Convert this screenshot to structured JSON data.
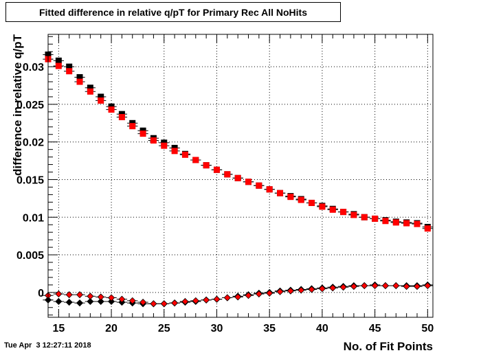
{
  "chart_data": {
    "type": "scatter",
    "title": "Fitted difference in relative q/pT for Primary Rec All NoHits",
    "xlabel": "No. of Fit Points",
    "ylabel": "difference in relative q/pT",
    "xlim": [
      14,
      50.5
    ],
    "ylim": [
      -0.0033,
      0.0343
    ],
    "x_ticks": [
      15,
      20,
      25,
      30,
      35,
      40,
      45,
      50
    ],
    "y_ticks": [
      0,
      0.005,
      0.01,
      0.015,
      0.02,
      0.025,
      0.03
    ],
    "y_tick_labels": [
      "0",
      "0.005",
      "0.01",
      "0.015",
      "0.02",
      "0.025",
      "0.03"
    ],
    "grid": true,
    "x": [
      14,
      15,
      16,
      17,
      18,
      19,
      20,
      21,
      22,
      23,
      24,
      25,
      26,
      27,
      28,
      29,
      30,
      31,
      32,
      33,
      34,
      35,
      36,
      37,
      38,
      39,
      40,
      41,
      42,
      43,
      44,
      45,
      46,
      47,
      48,
      49,
      50
    ],
    "series": [
      {
        "marker": "square",
        "color": "#000000",
        "values": [
          0.0316,
          0.0308,
          0.03,
          0.0286,
          0.0272,
          0.026,
          0.0247,
          0.0237,
          0.0225,
          0.0215,
          0.0205,
          0.0199,
          0.0192,
          0.0184,
          0.0176,
          0.0169,
          0.0163,
          0.0157,
          0.0152,
          0.0147,
          0.0142,
          0.0137,
          0.0132,
          0.0128,
          0.0124,
          0.0119,
          0.0115,
          0.0111,
          0.0107,
          0.0104,
          0.01,
          0.0098,
          0.0096,
          0.0094,
          0.0093,
          0.0092,
          0.0087
        ]
      },
      {
        "marker": "square",
        "color": "#ff0000",
        "values": [
          0.031,
          0.0301,
          0.0294,
          0.028,
          0.0267,
          0.0255,
          0.0243,
          0.0233,
          0.0221,
          0.0211,
          0.0202,
          0.0195,
          0.0188,
          0.0183,
          0.0176,
          0.0169,
          0.0163,
          0.0157,
          0.0152,
          0.0147,
          0.0142,
          0.0137,
          0.0132,
          0.0127,
          0.0123,
          0.0119,
          0.0114,
          0.011,
          0.0107,
          0.0103,
          0.01,
          0.0098,
          0.0095,
          0.0093,
          0.0092,
          0.0091,
          0.0085
        ]
      },
      {
        "marker": "diamond",
        "color": "#000000",
        "values": [
          -0.001,
          -0.0012,
          -0.0013,
          -0.0014,
          -0.0012,
          -0.0012,
          -0.0012,
          -0.0013,
          -0.0014,
          -0.0015,
          -0.0015,
          -0.0015,
          -0.0014,
          -0.0013,
          -0.0012,
          -0.001,
          -0.0009,
          -0.0007,
          -0.0005,
          -0.0003,
          -0.0001,
          0.0,
          0.0002,
          0.0003,
          0.0004,
          0.0005,
          0.0006,
          0.0007,
          0.0008,
          0.0009,
          0.0009,
          0.001,
          0.0009,
          0.0009,
          0.0009,
          0.0009,
          0.001
        ]
      },
      {
        "marker": "diamond",
        "color": "#ff0000",
        "values": [
          -0.0004,
          -0.0002,
          -0.0003,
          -0.0003,
          -0.0005,
          -0.0006,
          -0.0007,
          -0.0009,
          -0.0011,
          -0.0013,
          -0.0015,
          -0.0015,
          -0.0014,
          -0.0012,
          -0.0011,
          -0.001,
          -0.0009,
          -0.0007,
          -0.0006,
          -0.0004,
          -0.0002,
          -0.0001,
          0.0001,
          0.0002,
          0.0003,
          0.0004,
          0.0005,
          0.0006,
          0.0007,
          0.0008,
          0.0009,
          0.0009,
          0.0009,
          0.0009,
          0.0008,
          0.0008,
          0.0009
        ]
      }
    ]
  },
  "timestamp": "Tue Apr  3 12:27:11 2018"
}
